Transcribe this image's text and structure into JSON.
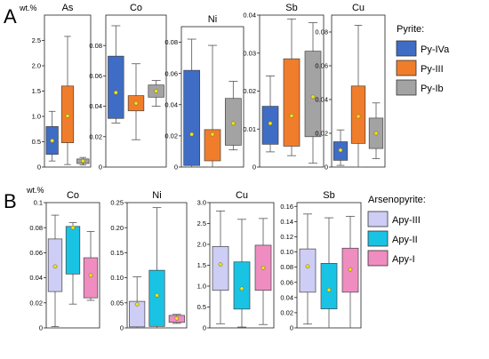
{
  "figure": {
    "row_a": {
      "letter": "A",
      "unit": "wt.%",
      "legend_title": "Pyrite:",
      "legend": [
        {
          "label": "Py-IVa",
          "color": "#3f6cc4"
        },
        {
          "label": "Py-III",
          "color": "#f07d2c"
        },
        {
          "label": "Py-Ib",
          "color": "#a3a3a3"
        }
      ]
    },
    "row_b": {
      "letter": "B",
      "unit": "wt.%",
      "legend_title": "Arsenopyrite:",
      "legend": [
        {
          "label": "Apy-III",
          "color": "#cdcdf5"
        },
        {
          "label": "Apy-II",
          "color": "#19c3e4"
        },
        {
          "label": "Apy-I",
          "color": "#ef8dc1"
        }
      ]
    }
  },
  "chart_data": [
    {
      "type": "box",
      "title": "As",
      "yticks": [
        "0",
        "0.5",
        "1.0",
        "1.5",
        "2.0",
        "2.5"
      ],
      "ylim": [
        0,
        3.0
      ],
      "categories": [
        "Py-IVa",
        "Py-III",
        "Py-Ib"
      ],
      "series": [
        {
          "name": "Py-IVa",
          "color": "#3f6cc4",
          "min": 0.12,
          "q1": 0.25,
          "q3": 0.8,
          "max": 1.1,
          "mean": 0.52
        },
        {
          "name": "Py-III",
          "color": "#f07d2c",
          "min": 0.05,
          "q1": 0.48,
          "q3": 1.6,
          "max": 2.58,
          "mean": 1.01
        },
        {
          "name": "Py-Ib",
          "color": "#a3a3a3",
          "min": 0.04,
          "q1": 0.07,
          "q3": 0.16,
          "max": 0.19,
          "mean": 0.12
        }
      ]
    },
    {
      "type": "box",
      "title": "Co",
      "yticks": [
        "0",
        "0.02",
        "0.04",
        "0.06",
        "0.08"
      ],
      "ylim": [
        0,
        0.1
      ],
      "categories": [
        "Py-IVa",
        "Py-III",
        "Py-Ib"
      ],
      "series": [
        {
          "name": "Py-IVa",
          "color": "#3f6cc4",
          "min": 0.029,
          "q1": 0.032,
          "q3": 0.073,
          "max": 0.093,
          "mean": 0.049
        },
        {
          "name": "Py-III",
          "color": "#f07d2c",
          "min": 0.018,
          "q1": 0.037,
          "q3": 0.047,
          "max": 0.068,
          "mean": 0.042
        },
        {
          "name": "Py-Ib",
          "color": "#a3a3a3",
          "min": 0.04,
          "q1": 0.046,
          "q3": 0.054,
          "max": 0.057,
          "mean": 0.05
        }
      ]
    },
    {
      "type": "box",
      "title": "Ni",
      "yticks": [
        "0",
        "0.02",
        "0.04",
        "0.06",
        "0.08"
      ],
      "ylim": [
        0,
        0.09
      ],
      "categories": [
        "Py-IVa",
        "Py-III",
        "Py-Ib"
      ],
      "series": [
        {
          "name": "Py-IVa",
          "color": "#3f6cc4",
          "min": 0.0,
          "q1": 0.001,
          "q3": 0.062,
          "max": 0.082,
          "mean": 0.021
        },
        {
          "name": "Py-III",
          "color": "#f07d2c",
          "min": 0.0,
          "q1": 0.004,
          "q3": 0.024,
          "max": 0.078,
          "mean": 0.021
        },
        {
          "name": "Py-Ib",
          "color": "#a3a3a3",
          "min": 0.011,
          "q1": 0.014,
          "q3": 0.044,
          "max": 0.055,
          "mean": 0.028
        }
      ]
    },
    {
      "type": "box",
      "title": "Sb",
      "yticks": [
        "0",
        "0.01",
        "0.02",
        "0.03",
        "0.04"
      ],
      "ylim": [
        0,
        0.04
      ],
      "categories": [
        "Py-IVa",
        "Py-III",
        "Py-Ib"
      ],
      "series": [
        {
          "name": "Py-IVa",
          "color": "#3f6cc4",
          "min": 0.004,
          "q1": 0.006,
          "q3": 0.016,
          "max": 0.024,
          "mean": 0.0115
        },
        {
          "name": "Py-III",
          "color": "#f07d2c",
          "min": 0.003,
          "q1": 0.0055,
          "q3": 0.0285,
          "max": 0.039,
          "mean": 0.0135
        },
        {
          "name": "Py-Ib",
          "color": "#a3a3a3",
          "min": 0.001,
          "q1": 0.008,
          "q3": 0.0305,
          "max": 0.038,
          "mean": 0.0185
        }
      ]
    },
    {
      "type": "box",
      "title": "Cu",
      "yticks": [
        "0",
        "0.02",
        "0.04",
        "0.06",
        "0.08"
      ],
      "ylim": [
        0,
        0.09
      ],
      "categories": [
        "Py-IVa",
        "Py-III",
        "Py-Ib"
      ],
      "series": [
        {
          "name": "Py-IVa",
          "color": "#3f6cc4",
          "min": 0.001,
          "q1": 0.004,
          "q3": 0.015,
          "max": 0.022,
          "mean": 0.01
        },
        {
          "name": "Py-III",
          "color": "#f07d2c",
          "min": 0.0,
          "q1": 0.014,
          "q3": 0.048,
          "max": 0.084,
          "mean": 0.03
        },
        {
          "name": "Py-Ib",
          "color": "#a3a3a3",
          "min": 0.005,
          "q1": 0.011,
          "q3": 0.029,
          "max": 0.038,
          "mean": 0.02
        }
      ]
    },
    {
      "type": "box",
      "title": "Co",
      "yticks": [
        "0",
        "0.02",
        "0.04",
        "0.06",
        "0.08",
        "0.1"
      ],
      "ylim": [
        0,
        0.1
      ],
      "categories": [
        "Apy-III",
        "Apy-II",
        "Apy-I"
      ],
      "series": [
        {
          "name": "Apy-III",
          "color": "#cdcdf5",
          "min": 0.001,
          "q1": 0.029,
          "q3": 0.071,
          "max": 0.09,
          "mean": 0.049
        },
        {
          "name": "Apy-II",
          "color": "#19c3e4",
          "min": 0.019,
          "q1": 0.043,
          "q3": 0.081,
          "max": 0.084,
          "mean": 0.08
        },
        {
          "name": "Apy-I",
          "color": "#ef8dc1",
          "min": 0.022,
          "q1": 0.024,
          "q3": 0.056,
          "max": 0.077,
          "mean": 0.042
        }
      ]
    },
    {
      "type": "box",
      "title": "Ni",
      "yticks": [
        "0",
        "0.05",
        "0.10",
        "0.15",
        "0.20",
        "0.25"
      ],
      "ylim": [
        0,
        0.25
      ],
      "categories": [
        "Apy-III",
        "Apy-II",
        "Apy-I"
      ],
      "series": [
        {
          "name": "Apy-III",
          "color": "#cdcdf5",
          "min": 0.0,
          "q1": 0.002,
          "q3": 0.053,
          "max": 0.102,
          "mean": 0.047
        },
        {
          "name": "Apy-II",
          "color": "#19c3e4",
          "min": 0.0,
          "q1": 0.003,
          "q3": 0.115,
          "max": 0.24,
          "mean": 0.065
        },
        {
          "name": "Apy-I",
          "color": "#ef8dc1",
          "min": 0.009,
          "q1": 0.011,
          "q3": 0.025,
          "max": 0.027,
          "mean": 0.019
        }
      ]
    },
    {
      "type": "box",
      "title": "Cu",
      "yticks": [
        "0",
        "0.5",
        "1.0",
        "1.5",
        "2.0",
        "2.5",
        "3.0"
      ],
      "ylim": [
        0,
        3.0
      ],
      "categories": [
        "Apy-III",
        "Apy-II",
        "Apy-I"
      ],
      "series": [
        {
          "name": "Apy-III",
          "color": "#cdcdf5",
          "min": 0.1,
          "q1": 0.9,
          "q3": 1.95,
          "max": 2.8,
          "mean": 1.52
        },
        {
          "name": "Apy-II",
          "color": "#19c3e4",
          "min": 0.02,
          "q1": 0.45,
          "q3": 1.58,
          "max": 2.6,
          "mean": 0.94
        },
        {
          "name": "Apy-I",
          "color": "#ef8dc1",
          "min": 0.08,
          "q1": 0.9,
          "q3": 1.98,
          "max": 2.62,
          "mean": 1.44
        }
      ]
    },
    {
      "type": "box",
      "title": "Sb",
      "yticks": [
        "0",
        "0.02",
        "0.04",
        "0.06",
        "0.08",
        "0.10",
        "0.12",
        "0.14",
        "0.16"
      ],
      "ylim": [
        0,
        0.165
      ],
      "categories": [
        "Apy-III",
        "Apy-II",
        "Apy-I"
      ],
      "series": [
        {
          "name": "Apy-III",
          "color": "#cdcdf5",
          "min": 0.005,
          "q1": 0.047,
          "q3": 0.104,
          "max": 0.15,
          "mean": 0.081
        },
        {
          "name": "Apy-II",
          "color": "#19c3e4",
          "min": 0.0,
          "q1": 0.025,
          "q3": 0.085,
          "max": 0.145,
          "mean": 0.05
        },
        {
          "name": "Apy-I",
          "color": "#ef8dc1",
          "min": 0.0,
          "q1": 0.047,
          "q3": 0.105,
          "max": 0.147,
          "mean": 0.077
        }
      ]
    }
  ]
}
